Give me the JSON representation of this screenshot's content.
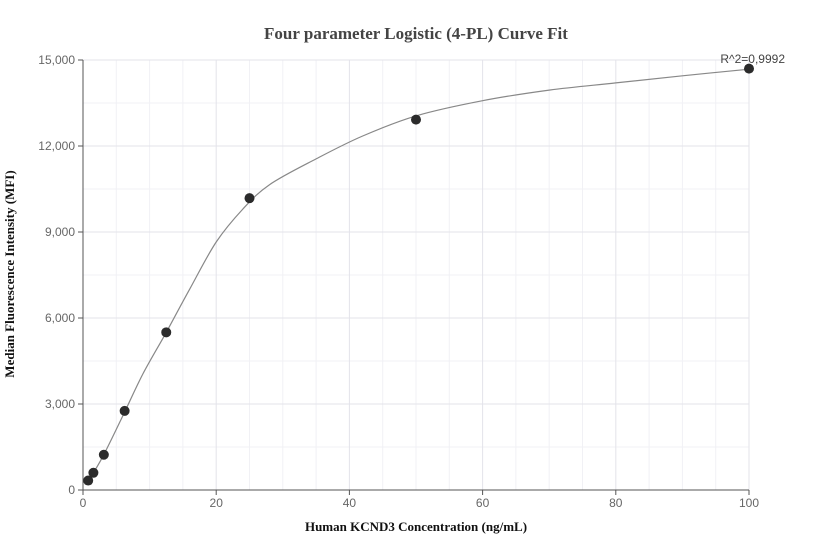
{
  "chart_data": {
    "type": "scatter",
    "title": "Four parameter Logistic (4-PL) Curve Fit",
    "xlabel": "Human KCND3 Concentration (ng/mL)",
    "ylabel": "Median Fluorescence Intensity (MFI)",
    "xlim": [
      0,
      100
    ],
    "ylim": [
      0,
      15000
    ],
    "x_ticks": [
      0,
      20,
      40,
      60,
      80,
      100
    ],
    "y_ticks": [
      0,
      3000,
      6000,
      9000,
      12000,
      15000
    ],
    "y_tick_labels": [
      "0",
      "3,000",
      "6,000",
      "9,000",
      "12,000",
      "15,000"
    ],
    "grid": true,
    "series": [
      {
        "points": [
          {
            "x": 0.78,
            "y": 330
          },
          {
            "x": 1.56,
            "y": 600
          },
          {
            "x": 3.13,
            "y": 1230
          },
          {
            "x": 6.25,
            "y": 2760
          },
          {
            "x": 12.5,
            "y": 5500
          },
          {
            "x": 25,
            "y": 10180
          },
          {
            "x": 50,
            "y": 12920
          },
          {
            "x": 100,
            "y": 14700
          }
        ]
      }
    ],
    "fit_curve": {
      "points": [
        {
          "x": 0.78,
          "y": 300
        },
        {
          "x": 3,
          "y": 1180
        },
        {
          "x": 6,
          "y": 2600
        },
        {
          "x": 9,
          "y": 4050
        },
        {
          "x": 12.5,
          "y": 5500
        },
        {
          "x": 16,
          "y": 7000
        },
        {
          "x": 20,
          "y": 8650
        },
        {
          "x": 24,
          "y": 9800
        },
        {
          "x": 28,
          "y": 10650
        },
        {
          "x": 35,
          "y": 11550
        },
        {
          "x": 42,
          "y": 12350
        },
        {
          "x": 50,
          "y": 13050
        },
        {
          "x": 60,
          "y": 13580
        },
        {
          "x": 70,
          "y": 13950
        },
        {
          "x": 80,
          "y": 14200
        },
        {
          "x": 90,
          "y": 14450
        },
        {
          "x": 100,
          "y": 14680
        }
      ]
    },
    "annotation": "R^2=0,9992"
  }
}
